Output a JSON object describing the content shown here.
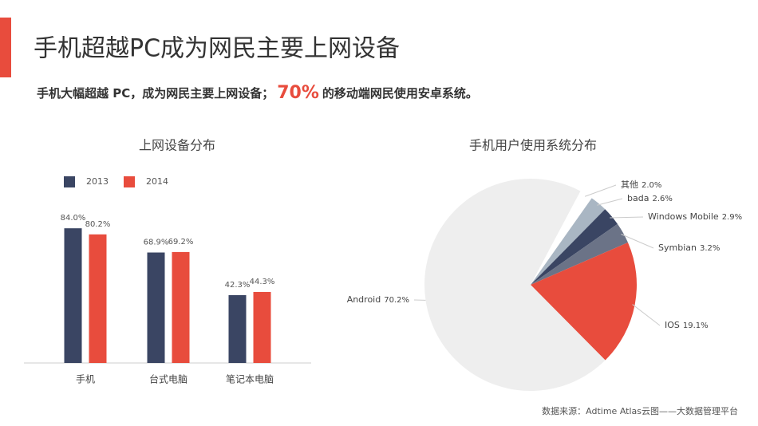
{
  "header": {
    "title": "手机超越PC成为网民主要上网设备",
    "subtitle": {
      "before": "手机大幅超越 PC，成为网民主要上网设备；",
      "highlight": "70%",
      "after": "的移动端网民使用安卓系统。"
    }
  },
  "chart_data": [
    {
      "type": "bar",
      "title": "上网设备分布",
      "categories": [
        "手机",
        "台式电脑",
        "笔记本电脑"
      ],
      "series": [
        {
          "name": "2013",
          "color": "#3a4563",
          "values": [
            84.0,
            68.9,
            42.3
          ],
          "value_labels": [
            "84.0%",
            "68.9%",
            "42.3%"
          ]
        },
        {
          "name": "2014",
          "color": "#e84c3d",
          "values": [
            80.2,
            69.2,
            44.3
          ],
          "value_labels": [
            "80.2%",
            "69.2%",
            "44.3%"
          ]
        }
      ]
    },
    {
      "type": "pie",
      "title": "手机用户使用系统分布",
      "categories": [
        "其他",
        "bada",
        "Windows Mobile",
        "Symbian",
        "IOS",
        "Android"
      ],
      "values": [
        2.0,
        2.6,
        2.9,
        3.2,
        19.1,
        70.2
      ],
      "value_labels": [
        "2.0%",
        "2.6%",
        "2.9%",
        "3.2%",
        "19.1%",
        "70.2%"
      ],
      "colors": [
        "#ffffff",
        "#a9b6c3",
        "#3a4563",
        "#6b7387",
        "#e84c3d",
        "#eeeeee"
      ]
    }
  ],
  "footer": "数据来源：Adtime Atlas云图——大数据管理平台"
}
